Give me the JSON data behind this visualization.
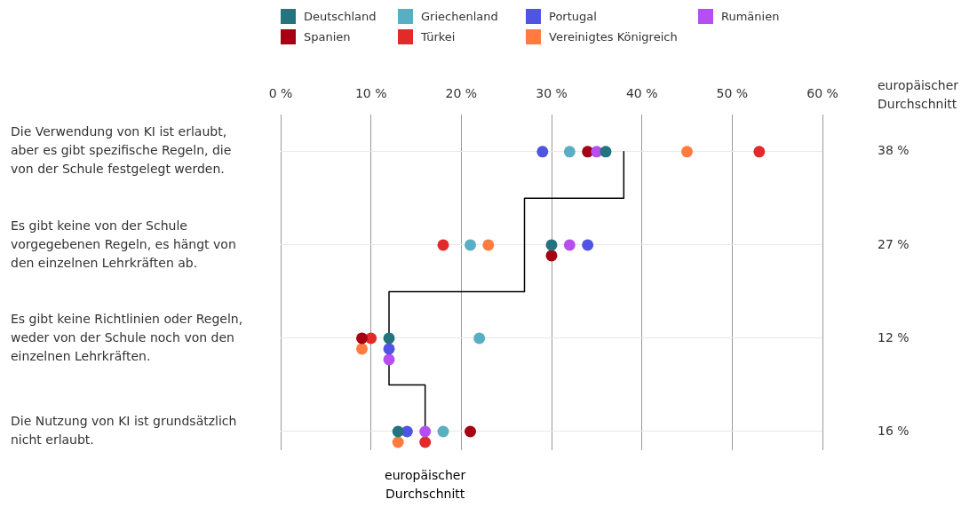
{
  "chart_data": {
    "type": "scatter",
    "orientation": "horizontal",
    "categories": [
      "Die Verwendung von KI ist erlaubt, aber es gibt spezifische Regeln, die von der Schule festgelegt werden.",
      "Es gibt keine von der Schule vorgegebenen Regeln, es hängt von den einzelnen Lehrkräften ab.",
      "Es gibt keine Richtlinien oder Regeln, weder von der Schule noch von den einzelnen Lehrkräften.",
      "Die Nutzung von KI ist grundsätzlich nicht erlaubt."
    ],
    "series": [
      {
        "name": "Deutschland",
        "color": "#24737e",
        "values": [
          36,
          30,
          12,
          13
        ]
      },
      {
        "name": "Griechenland",
        "color": "#5aaec4",
        "values": [
          32,
          21,
          22,
          18
        ]
      },
      {
        "name": "Portugal",
        "color": "#4f54e3",
        "values": [
          29,
          34,
          12,
          14
        ]
      },
      {
        "name": "Rumänien",
        "color": "#b64ff0",
        "values": [
          35,
          32,
          12,
          16
        ]
      },
      {
        "name": "Spanien",
        "color": "#a50013",
        "values": [
          34,
          30,
          9,
          21
        ]
      },
      {
        "name": "Türkei",
        "color": "#e32a2a",
        "values": [
          53,
          18,
          10,
          16
        ]
      },
      {
        "name": "Vereinigtes Königreich",
        "color": "#ff7b3f",
        "values": [
          45,
          23,
          9,
          13
        ]
      },
      {
        "name": "europäischer Durchschnitt",
        "type": "step",
        "marker": "none",
        "color": "#000000",
        "values": [
          38,
          27,
          12,
          16
        ],
        "value_labels": [
          "38 %",
          "27 %",
          "12 %",
          "16 %"
        ]
      }
    ],
    "annotations": [
      "europäischer Durchschnitt"
    ],
    "xlim": [
      0,
      60
    ],
    "xticks": [
      {
        "value": 0,
        "label": "0 %"
      },
      {
        "value": 10,
        "label": "10 %"
      },
      {
        "value": 20,
        "label": "20 %"
      },
      {
        "value": 30,
        "label": "30 %"
      },
      {
        "value": 40,
        "label": "40 %"
      },
      {
        "value": 50,
        "label": "50 %"
      },
      {
        "value": 60,
        "label": "60 %"
      }
    ],
    "grid": true,
    "legend": "top",
    "marker": "circle"
  }
}
